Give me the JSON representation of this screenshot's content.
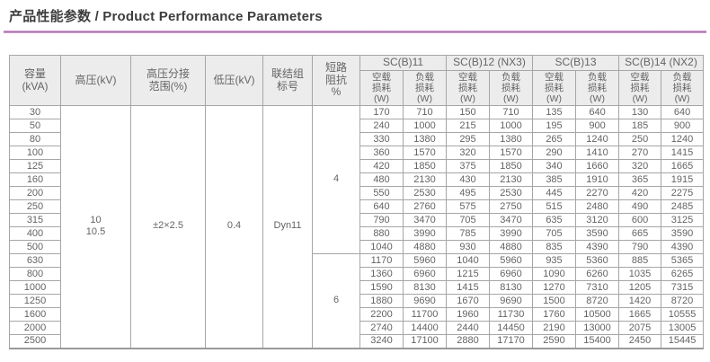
{
  "page": {
    "title": "产品性能参数 / Product Performance Parameters",
    "accent_color": "#a96aae"
  },
  "table": {
    "left_headers": {
      "capacity": "容量\n(kVA)",
      "hv": "高压(kV)",
      "tap": "高压分接\n范围(%)",
      "lv": "低压(kV)",
      "vector": "联结组\n标号",
      "impedance": "短路\n阻抗\n%"
    },
    "groups": [
      "SC(B)11",
      "SC(B)12 (NX3)",
      "SC(B)13",
      "SC(B)14 (NX2)"
    ],
    "no_load_label": "空载\n损耗\n(W)",
    "load_label": "负载\n损耗\n(W)",
    "merged": {
      "hv_value": "10\n10.5",
      "tap_value": "±2×2.5",
      "lv_value": "0.4",
      "vector_value": "Dyn11",
      "impedance_first": "4",
      "impedance_first_span": 11,
      "impedance_second": "6"
    },
    "rows": [
      [
        30,
        170,
        710,
        150,
        710,
        135,
        640,
        130,
        640
      ],
      [
        50,
        240,
        1000,
        215,
        1000,
        195,
        900,
        185,
        900
      ],
      [
        80,
        330,
        1380,
        295,
        1380,
        265,
        1240,
        250,
        1240
      ],
      [
        100,
        360,
        1570,
        320,
        1570,
        290,
        1410,
        270,
        1415
      ],
      [
        125,
        420,
        1850,
        375,
        1850,
        340,
        1660,
        320,
        1665
      ],
      [
        160,
        480,
        2130,
        430,
        2130,
        385,
        1910,
        365,
        1915
      ],
      [
        200,
        550,
        2530,
        495,
        2530,
        445,
        2270,
        420,
        2275
      ],
      [
        250,
        640,
        2760,
        575,
        2750,
        515,
        2480,
        490,
        2485
      ],
      [
        315,
        790,
        3470,
        705,
        3470,
        635,
        3120,
        600,
        3125
      ],
      [
        400,
        880,
        3990,
        785,
        3990,
        705,
        3590,
        665,
        3590
      ],
      [
        500,
        1040,
        4880,
        930,
        4880,
        835,
        4390,
        790,
        4390
      ],
      [
        630,
        1170,
        5960,
        1040,
        5960,
        935,
        5360,
        885,
        5365
      ],
      [
        800,
        1360,
        6960,
        1215,
        6960,
        1090,
        6260,
        1035,
        6265
      ],
      [
        1000,
        1590,
        8130,
        1415,
        8130,
        1270,
        7310,
        1205,
        7315
      ],
      [
        1250,
        1880,
        9690,
        1670,
        9690,
        1500,
        8720,
        1420,
        8720
      ],
      [
        1600,
        2200,
        11700,
        1960,
        11730,
        1760,
        10500,
        1665,
        10555
      ],
      [
        2000,
        2740,
        14400,
        2440,
        14450,
        2190,
        13000,
        2075,
        13005
      ],
      [
        2500,
        3240,
        17100,
        2880,
        17170,
        2590,
        15400,
        2450,
        15445
      ]
    ]
  }
}
